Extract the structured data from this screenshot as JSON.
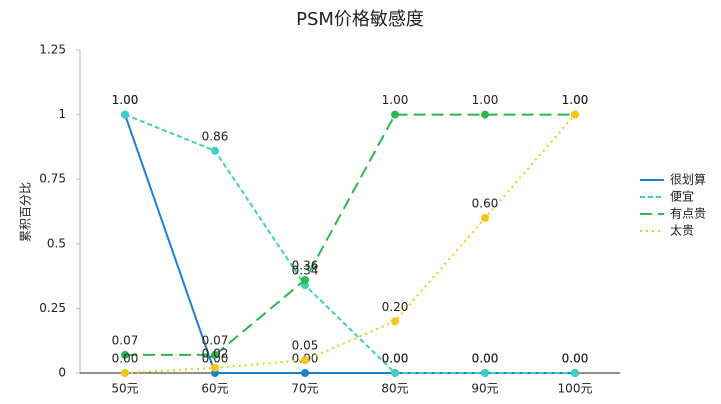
{
  "chart_data": {
    "type": "line",
    "title": "PSM价格敏感度",
    "y_label": "累积百分比",
    "categories": [
      "50元",
      "60元",
      "70元",
      "80元",
      "90元",
      "100元"
    ],
    "ylim": [
      0,
      1.25
    ],
    "yticks": [
      0,
      0.25,
      0.5,
      0.75,
      1,
      1.25
    ],
    "grid": false,
    "legend": "right",
    "series": [
      {
        "name": "很划算",
        "color": "#1f7fd4",
        "dash": "solid",
        "values": [
          1,
          0,
          0,
          0,
          0,
          0
        ],
        "value_labels": [
          "1.00",
          "0.00",
          "0.00",
          "0.00",
          "0.00",
          "0.00"
        ]
      },
      {
        "name": "便宜",
        "color": "#40d0c0",
        "dash": "dashed",
        "values": [
          1,
          0.86,
          0.34,
          0,
          0,
          0
        ],
        "value_labels": [
          "1.00",
          "0.86",
          "0.34",
          "0.00",
          "0.00",
          "0.00"
        ]
      },
      {
        "name": "有点贵",
        "color": "#2db84d",
        "dash": "longdash",
        "values": [
          0.07,
          0.07,
          0.36,
          1,
          1,
          1
        ],
        "value_labels": [
          "0.07",
          "0.07",
          "0.36",
          "1.00",
          "1.00",
          "1.00"
        ]
      },
      {
        "name": "太贵",
        "color": "#f5c518",
        "dash": "dotted",
        "values": [
          0,
          0.02,
          0.05,
          0.2,
          0.6,
          1
        ],
        "value_labels": [
          "0.00",
          "0.02",
          "0.05",
          "0.20",
          "0.60",
          "1.00"
        ]
      }
    ]
  }
}
